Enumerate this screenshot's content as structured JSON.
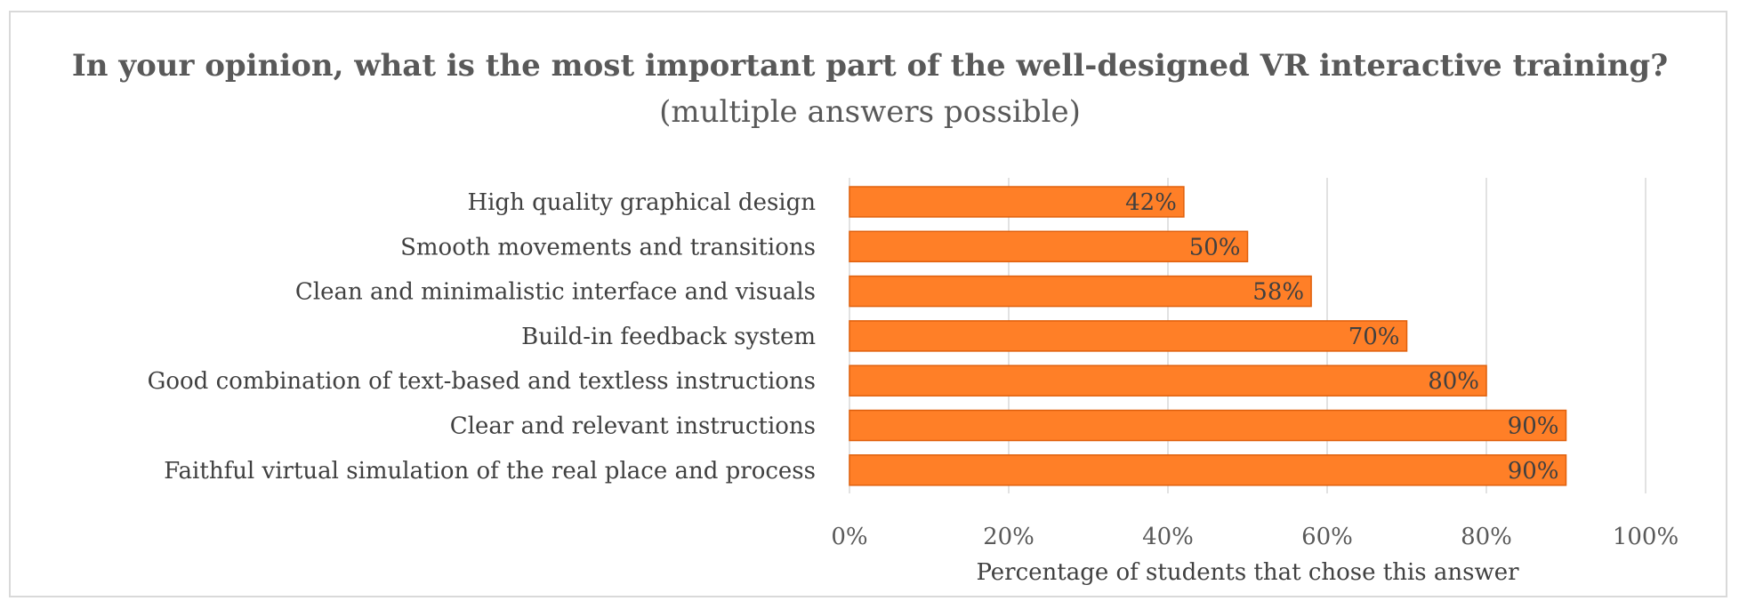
{
  "chart_data": {
    "type": "bar",
    "orientation": "horizontal",
    "title": "In your opinion, what is the most important part of the well-designed VR interactive training?",
    "subtitle": "(multiple answers possible)",
    "categories": [
      "High quality graphical design",
      "Smooth movements and transitions",
      "Clean and minimalistic interface and visuals",
      "Build-in feedback system",
      "Good combination of text-based and textless instructions",
      "Clear and relevant instructions",
      "Faithful virtual simulation of the real place and process"
    ],
    "values": [
      42,
      50,
      58,
      70,
      80,
      90,
      90
    ],
    "data_labels": [
      "42%",
      "50%",
      "58%",
      "70%",
      "80%",
      "90%",
      "90%"
    ],
    "xlabel": "Percentage of students that chose this answer",
    "ylabel": "",
    "xlim": [
      0,
      100
    ],
    "xticks": [
      0,
      20,
      40,
      60,
      80,
      100
    ],
    "xtick_labels": [
      "0%",
      "20%",
      "40%",
      "60%",
      "80%",
      "100%"
    ],
    "grid": true,
    "legend": "none",
    "bar_color": "#ff7f27",
    "bar_edge_color": "#e0600c"
  }
}
